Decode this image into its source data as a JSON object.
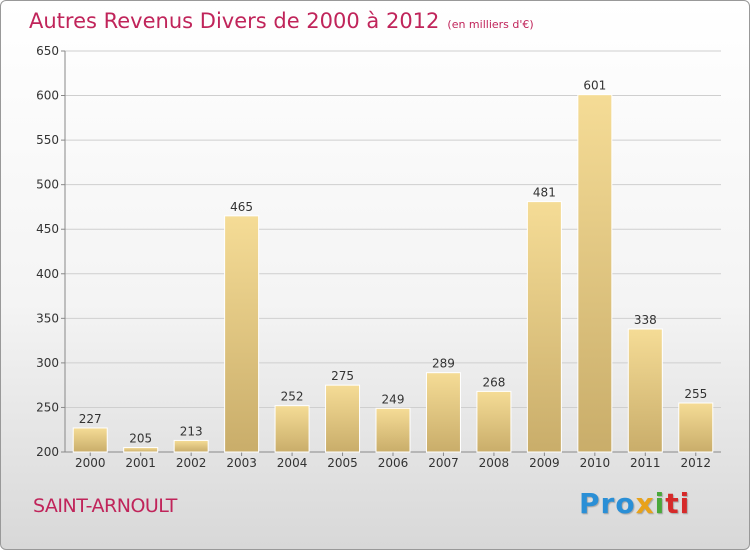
{
  "chart_data": {
    "type": "bar",
    "title": "Autres Revenus Divers de 2000 à 2012",
    "unit": "(en milliers d'€)",
    "categories": [
      "2000",
      "2001",
      "2002",
      "2003",
      "2004",
      "2005",
      "2006",
      "2007",
      "2008",
      "2009",
      "2010",
      "2011",
      "2012"
    ],
    "values": [
      227,
      205,
      213,
      465,
      252,
      275,
      249,
      289,
      268,
      481,
      601,
      338,
      255
    ],
    "value_labels": [
      "227",
      "205",
      "213",
      "465",
      "252",
      "275",
      "249",
      "289",
      "268",
      "481",
      "601",
      "338",
      "255"
    ],
    "ylim": [
      200,
      650
    ],
    "yticks": [
      200,
      250,
      300,
      350,
      400,
      450,
      500,
      550,
      600,
      650
    ],
    "ytick_labels": [
      "200",
      "250",
      "300",
      "350",
      "400",
      "450",
      "500",
      "550",
      "600",
      "650"
    ],
    "grid": true,
    "bar_color_top": "#f5dc96",
    "bar_color_bottom": "#c9ad6a",
    "title_color": "#c0245a"
  },
  "commune": "SAINT-ARNOULT",
  "logo": {
    "p1": "Pro",
    "p2": "x",
    "p3": "i",
    "p4": "ti"
  }
}
